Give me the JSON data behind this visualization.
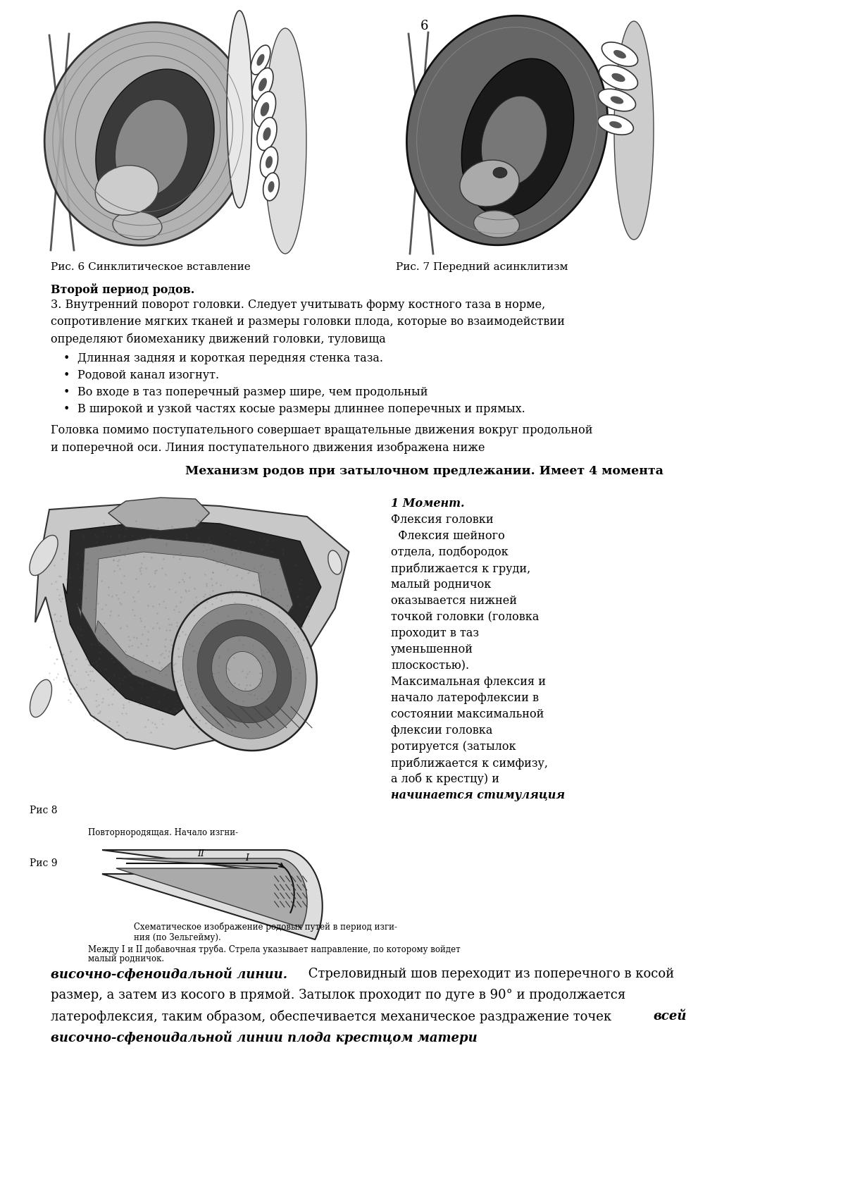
{
  "page_number": "6",
  "background_color": "#ffffff",
  "text_color": "#000000",
  "fig_caption_1": "Рис. 6 Синклитическое вставление",
  "fig_caption_2": "Рис. 7 Передний асинклитизм",
  "section_header": "Второй период родов.",
  "para1_line1": "3. Внутренний поворот головки. Следует учитывать форму костного таза в норме,",
  "para1_line2": "сопротивление мягких тканей и размеры головки плода, которые во взаимодействии",
  "para1_line3": "определяют биомеханику движений головки, туловища",
  "bullet1": "Длинная задняя и короткая передняя стенка таза.",
  "bullet2": "Родовой канал изогнут.",
  "bullet3": "Во входе в таз поперечный размер шире, чем продольный",
  "bullet4": "В широкой и узкой частях косые размеры длиннее поперечных и прямых.",
  "para2_line1": "Головка помимо поступательного совершает вращательные движения вокруг продольной",
  "para2_line2": "и поперечной оси. Линия поступательного движения изображена ниже",
  "center_header": "Механизм родов при затылочном предлежании. Имеет 4 момента",
  "fig8_label": "Рис 8",
  "fig9_label": "Рис 9",
  "fig8_sublabel": "Повторнородящая. Начало изгни-",
  "fig9_cap_line1": "Схематическое изображение родовых путей в период изги-",
  "fig9_cap_line2": "ния (по Зельгейму).",
  "fig9_cap_line3": "Между I и II добавочная труба. Стрела указывает направление, по которому войдет",
  "fig9_cap_line4": "малый родничок.",
  "moment_header": "1 Момент.",
  "moment_lines": [
    "Флексия головки",
    "  Флексия шейного",
    "отдела, подбородок",
    "приближается к груди,",
    "малый родничок",
    "оказывается нижней",
    "точкой головки (головка",
    "проходит в таз",
    "уменьшенной",
    "плоскостью).",
    "Максимальная флексия и",
    "начало латерофлексии в",
    "состоянии максимальной",
    "флексии головка",
    "ротируется (затылок",
    "приближается к симфизу,",
    "а лоб к крестцу) и"
  ],
  "moment_italic_bold": "начинается стимуляция",
  "bottom_ib1": "височно-сфеноидальной линии.",
  "bottom_reg1": " Стреловидный шов переходит из поперечного в косой",
  "bottom_line2": "размер, а затем из косого в прямой. Затылок проходит по дуге в 90° и продолжается",
  "bottom_line3_reg": "латерофлексия, таким образом, обеспечивается механическое раздражение точек ",
  "bottom_line3_ib": "всей",
  "bottom_line4": "височно-сфеноидальной линии плода крестцом матери"
}
